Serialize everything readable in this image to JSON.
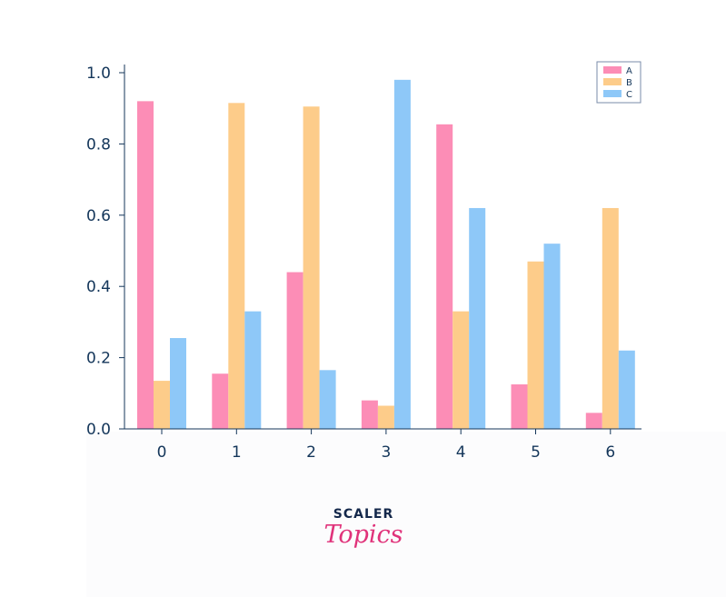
{
  "chart_data": {
    "type": "bar",
    "title": "",
    "xlabel": "",
    "ylabel": "",
    "categories": [
      "0",
      "1",
      "2",
      "3",
      "4",
      "5",
      "6"
    ],
    "ylim": [
      0,
      1.0
    ],
    "yticks": [
      "0.0",
      "0.2",
      "0.4",
      "0.6",
      "0.8",
      "1.0"
    ],
    "grid": false,
    "legend": "top-right",
    "series": [
      {
        "name": "A",
        "color": "#fc8db6",
        "values": [
          0.92,
          0.155,
          0.44,
          0.08,
          0.855,
          0.125,
          0.045
        ]
      },
      {
        "name": "B",
        "color": "#fdcc8a",
        "values": [
          0.135,
          0.915,
          0.905,
          0.065,
          0.33,
          0.47,
          0.62
        ]
      },
      {
        "name": "C",
        "color": "#8ec8f8",
        "values": [
          0.255,
          0.33,
          0.165,
          0.98,
          0.62,
          0.52,
          0.22
        ]
      }
    ]
  },
  "watermark": {
    "line1": "SCALER",
    "line2": "Topics"
  }
}
